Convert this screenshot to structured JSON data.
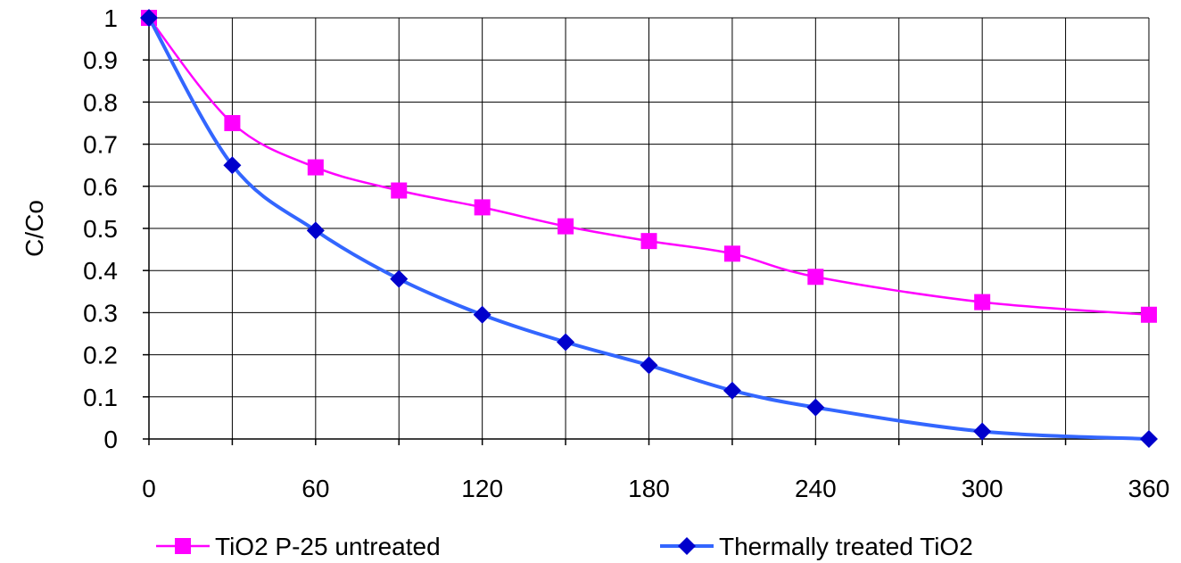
{
  "chart_data": {
    "type": "line",
    "title": "",
    "xlabel": "",
    "ylabel": "C/Co",
    "xlim": [
      0,
      360
    ],
    "ylim": [
      0,
      1
    ],
    "xticks": [
      0,
      60,
      120,
      180,
      240,
      300,
      360
    ],
    "yticks": [
      0,
      0.1,
      0.2,
      0.3,
      0.4,
      0.5,
      0.6,
      0.7,
      0.8,
      0.9,
      1
    ],
    "grid": true,
    "legend": "bottom",
    "series": [
      {
        "name": "TiO2 P-25 untreated",
        "color": "#FF00FF",
        "marker": "square",
        "x": [
          0,
          30,
          60,
          90,
          120,
          150,
          180,
          210,
          240,
          300,
          360
        ],
        "y": [
          1.0,
          0.75,
          0.645,
          0.59,
          0.55,
          0.505,
          0.47,
          0.44,
          0.385,
          0.325,
          0.295
        ]
      },
      {
        "name": "Thermally treated TiO2",
        "color": "#3366FF",
        "marker_color": "#0000CC",
        "marker": "diamond",
        "x": [
          0,
          30,
          60,
          90,
          120,
          150,
          180,
          210,
          240,
          300,
          360
        ],
        "y": [
          1.0,
          0.65,
          0.495,
          0.38,
          0.295,
          0.23,
          0.175,
          0.115,
          0.075,
          0.018,
          0.0
        ]
      }
    ]
  }
}
